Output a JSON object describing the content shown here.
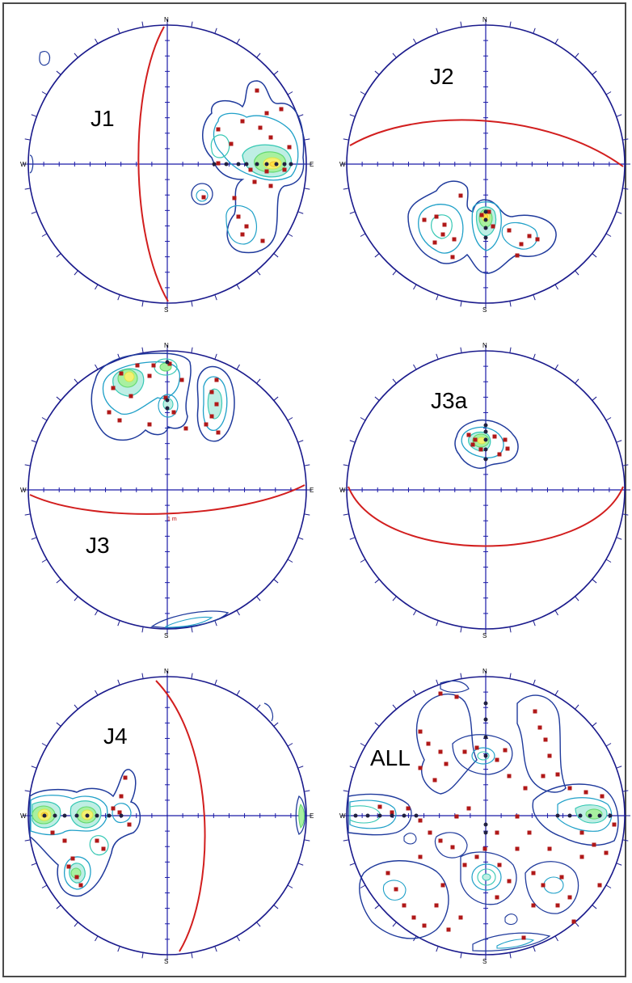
{
  "figure": {
    "direction_labels": {
      "north": "N",
      "south": "S",
      "east": "E",
      "west": "W"
    },
    "colors": {
      "frame": "#4a4a4a",
      "circle": "#1a1a8c",
      "axes": "#1a1aa8",
      "great_circle": "#d21e1e",
      "pole_marker": "#b01818",
      "contours": [
        "#1f3a9c",
        "#1fa0c8",
        "#36c8b4",
        "#62d870",
        "#d6e64a",
        "#f0c030"
      ]
    },
    "nets": [
      {
        "id": "J1",
        "label": "J1"
      },
      {
        "id": "J2",
        "label": "J2"
      },
      {
        "id": "J3",
        "label": "J3",
        "annotation": "1 m"
      },
      {
        "id": "J3a",
        "label": "J3a"
      },
      {
        "id": "J4",
        "label": "J4"
      },
      {
        "id": "ALL",
        "label": "ALL"
      }
    ]
  }
}
